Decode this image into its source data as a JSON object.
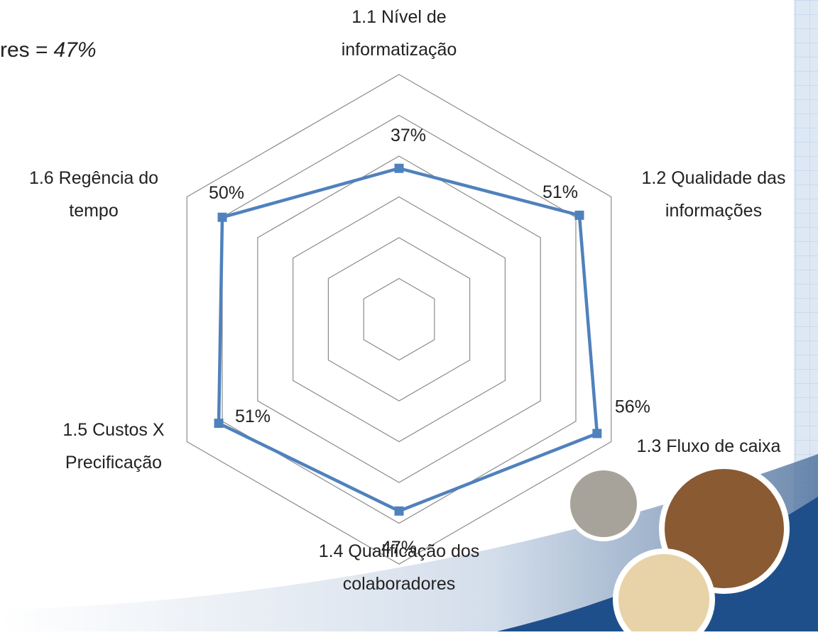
{
  "chart_data": {
    "type": "radar",
    "annotation": [
      "res =",
      "47%"
    ],
    "categories": [
      [
        "1.1 Nível de",
        "informatização"
      ],
      [
        "1.2 Qualidade das",
        "informações"
      ],
      [
        "1.3 Fluxo de caixa"
      ],
      [
        "1.4 Qualificação dos",
        "colaboradores"
      ],
      [
        "1.5 Custos X",
        "Precificação"
      ],
      [
        "1.6 Regência do",
        "tempo"
      ]
    ],
    "series": [
      {
        "color": "#4f81bd",
        "values": [
          37,
          51,
          56,
          47,
          51,
          50
        ],
        "value_labels": [
          "37%",
          "51%",
          "56%",
          "47%",
          "51%",
          "50%"
        ]
      }
    ],
    "rlim": [
      0,
      60
    ],
    "rticks": [
      0,
      10,
      20,
      30,
      40,
      50,
      60
    ],
    "grid": true
  }
}
